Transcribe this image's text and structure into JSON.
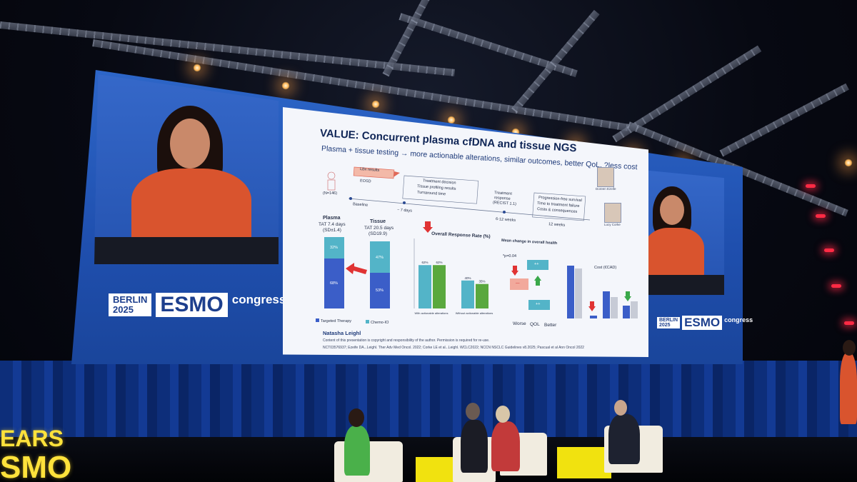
{
  "event": {
    "left_logo_city": "BERLIN",
    "left_logo_year": "2025",
    "left_logo_brand": "ESMO",
    "left_logo_suffix": "congress",
    "right_logo_city": "BERLIN",
    "right_logo_year": "2025",
    "right_logo_brand": "ESMO",
    "right_logo_suffix": "congress",
    "foreground_sign_top": "EARS",
    "foreground_sign_bottom": "SMO"
  },
  "slide": {
    "title": "VALUE: Concurrent plasma cfDNA and tissue NGS",
    "subtitle": "Plasma + tissue testing → more actionable alterations, similar outcomes, better QoL, ?less cost",
    "timeline": {
      "lbx_results": "LBx results",
      "eosd": "EOSD",
      "n": "(N=146)",
      "baseline": "Baseline",
      "days": "~ 7 days",
      "decision_box": [
        "Treatment decision",
        "Tissue profiling results",
        "Turnaround time"
      ],
      "treatment_response": [
        "Treatment",
        "response",
        "(RECIST 1.1)"
      ],
      "weeks_6_12": "6-12 weeks",
      "weeks_12": "12 weeks",
      "outcome_box": [
        "Progression-free survival",
        "Time to treatment failure",
        "Costs & consequences"
      ]
    },
    "plasma_label": "Plasma",
    "plasma_tat": "TAT 7.4 days",
    "plasma_sd": "(SD±1.4)",
    "tissue_label": "Tissue",
    "tissue_tat": "TAT 20.5 days",
    "tissue_sd": "(SD19.9)",
    "orr_title": "Overall Response Rate (%)",
    "health_title": "Mean change in overall health",
    "pvalue": "*p=0.04",
    "cost_title": "Cost (€CAD)",
    "worse": "Worse",
    "qol": "QOL",
    "better": "Better",
    "legend_targeted": "Targeted Therapy",
    "legend_chemo": "Chemo-IO",
    "author": "Natasha Leighl",
    "copyright": "Content of this presentation is copyright and responsibility of the author. Permission is required for re-use.",
    "references": "NCT03576937; Ezeife DA...Leighl. Ther Adv Med Oncol. 2022; Corke LE et al...Leighl. WCLC2022; NCCN NSCLC Guidelines v8.2025; Pascual et al Ann Oncol 2022",
    "thumb_names": [
      "Doreen Ezeife",
      "Lucy Corke"
    ],
    "plus": "++",
    "minus": "—",
    "pct_68": "68%",
    "pct_53": "53%",
    "pct_32": "32%",
    "pct_47": "47%"
  },
  "chart_data": {
    "type": "bar",
    "categories": [
      "With actionable alterations",
      "Without actionable alterations"
    ],
    "series": [
      {
        "name": "",
        "values": [
          62,
          40
        ]
      },
      {
        "name": "",
        "values": [
          62,
          35
        ]
      }
    ],
    "title": "Overall Response Rate (%)",
    "ylim": [
      0,
      100
    ]
  },
  "colors": {
    "screen_blue": "#2d66c8",
    "speaker_dress": "#d9542e",
    "slide_bg": "#f4f6fb",
    "bar_navy": "#3b5ec8",
    "bar_teal": "#53b4c8",
    "bar_green": "#5aa83e",
    "stage_yellow": "#f1e20f",
    "arrow_red": "#e03333"
  }
}
